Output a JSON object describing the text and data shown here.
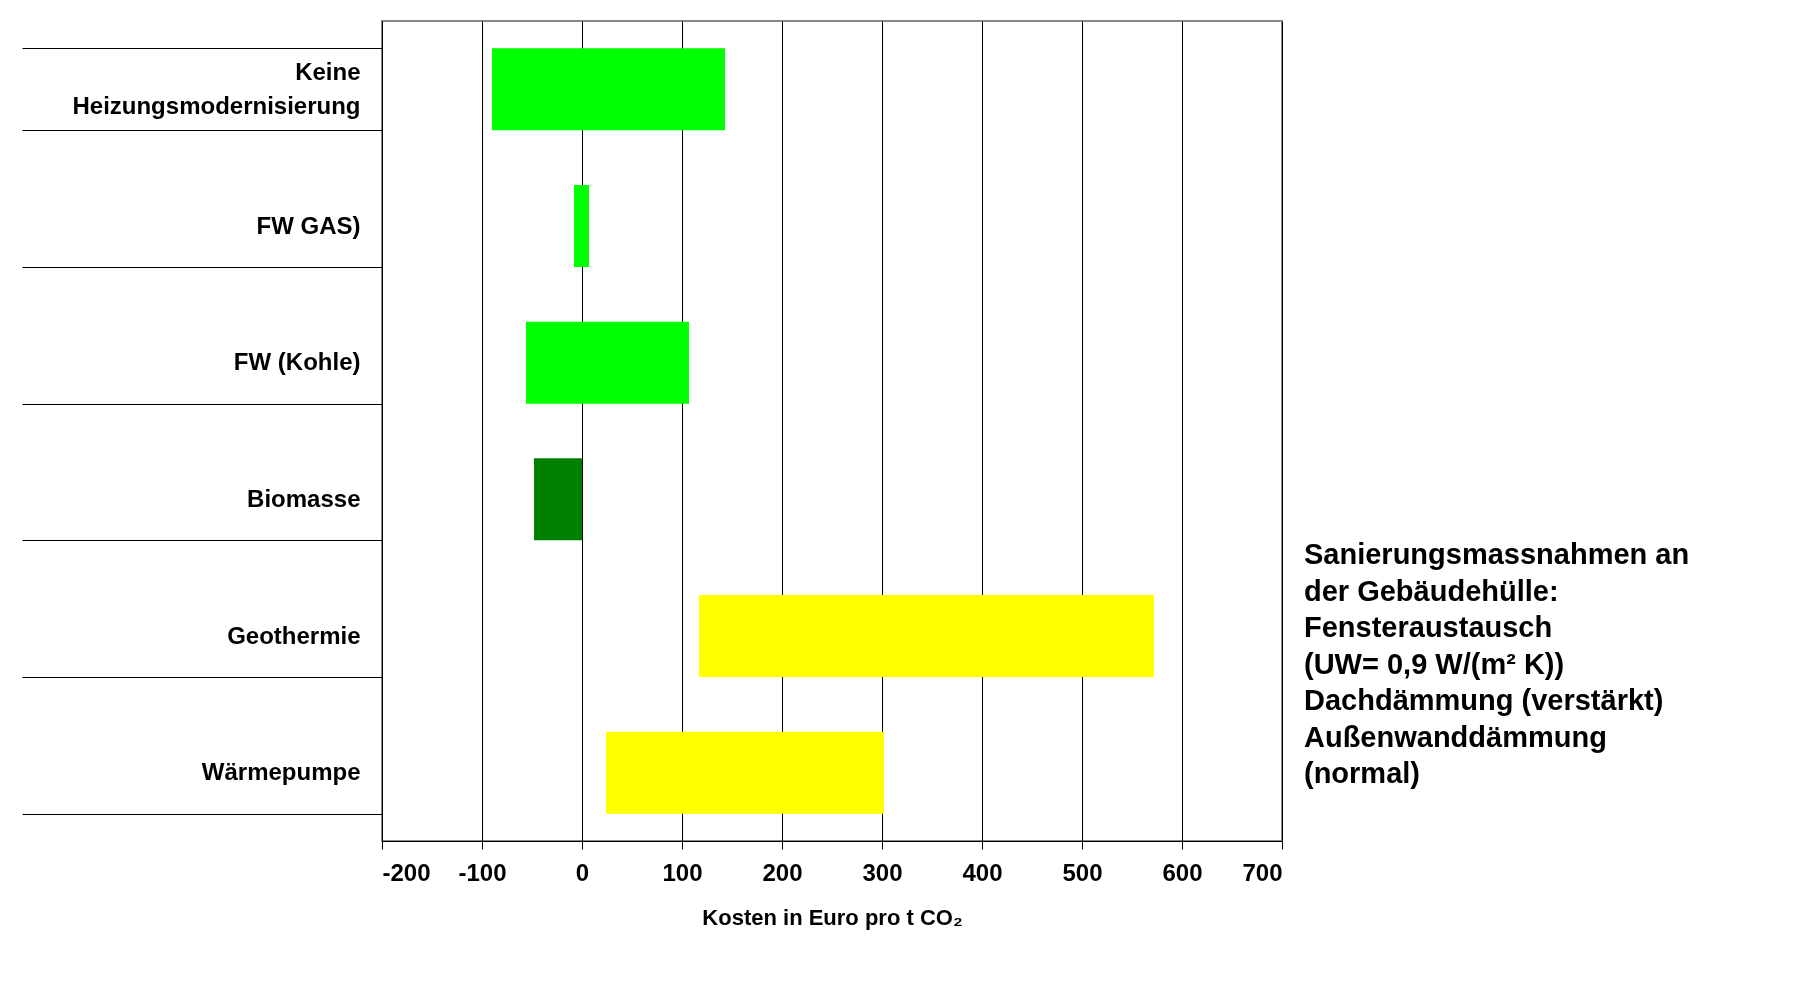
{
  "chart_data": {
    "type": "bar",
    "orientation": "horizontal",
    "categories": [
      "Keine Heizungsmodernisierung",
      "FW GAS)",
      "FW (Kohle)",
      "Biomasse",
      "Geothermie",
      "Wärmepumpe"
    ],
    "base": [
      -90,
      -8,
      -56,
      -48,
      117,
      24
    ],
    "values": [
      233,
      15,
      163,
      48,
      455,
      278
    ],
    "colors": [
      "#00ff00",
      "#00ff00",
      "#00ff00",
      "#008000",
      "#ffff00",
      "#ffff00"
    ],
    "xlim": [
      -200,
      700
    ],
    "xticks": [
      -200,
      -100,
      0,
      100,
      200,
      300,
      400,
      500,
      600,
      700
    ],
    "xlabel": "Kosten in Euro pro t CO₂",
    "grid": "x",
    "annotations": [
      "Sanierungsmassnahmen an\nder Gebäudehülle:\nFensteraustausch\n(UW= 0,9 W/(m² K))\nDachdämmung (verstärkt)\nAußenwanddämmung\n(normal)"
    ]
  }
}
